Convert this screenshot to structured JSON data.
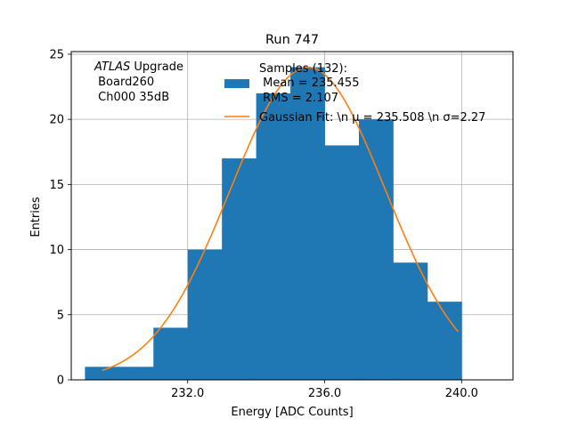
{
  "chart_data": {
    "type": "bar",
    "title": "Run 747",
    "xlabel": "Energy [ADC Counts]",
    "ylabel": "Entries",
    "xlim": [
      228.6,
      241.5
    ],
    "ylim": [
      0,
      25.2
    ],
    "xticks": [
      232.0,
      236.0,
      240.0
    ],
    "xtick_labels": [
      "232.0",
      "236.0",
      "240.0"
    ],
    "yticks": [
      0,
      5,
      10,
      15,
      20,
      25
    ],
    "ytick_labels": [
      "0",
      "5",
      "10",
      "15",
      "20",
      "25"
    ],
    "grid": true,
    "bin_edges": [
      229.0,
      230.0,
      231.0,
      232.0,
      233.0,
      234.0,
      235.0,
      236.0,
      237.0,
      238.0,
      239.0,
      240.0
    ],
    "counts": [
      1,
      1,
      4,
      10,
      17,
      22,
      24,
      18,
      20,
      9,
      6
    ],
    "fit": {
      "mu": 235.508,
      "sigma": 2.27,
      "amplitude": 24,
      "x_range": [
        229.5,
        239.9
      ]
    },
    "colors": {
      "bars": "#1f77b4",
      "fit": "#ff7f0e",
      "grid": "#b0b0b0"
    },
    "legend": {
      "placement": "top-right",
      "entries": [
        {
          "kind": "patch",
          "lines": [
            "Samples (132):",
            " Mean = 235.455",
            " RMS = 2.107"
          ]
        },
        {
          "kind": "line",
          "lines": [
            "Gaussian Fit: \\n μ = 235.508 \\n σ=2.27"
          ]
        }
      ]
    },
    "annotation": {
      "italic": "ATLAS",
      "rest": " Upgrade",
      "lines": [
        " Board260",
        " Ch000 35dB"
      ]
    }
  }
}
